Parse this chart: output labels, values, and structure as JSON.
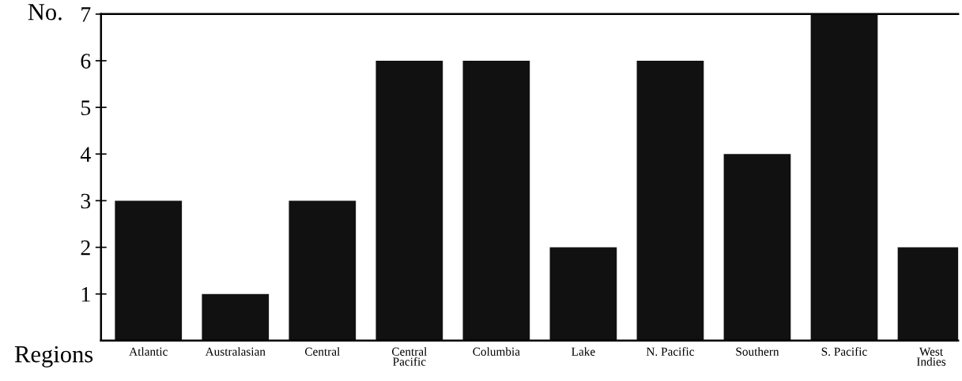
{
  "chart_data": {
    "type": "bar",
    "xlabel": "Regions",
    "ylabel": "No.",
    "categories": [
      "Atlantic",
      "Australasian",
      "Central",
      "Central\nPacific",
      "Columbia",
      "Lake",
      "N. Pacific",
      "Southern",
      "S. Pacific",
      "West\nIndies"
    ],
    "values": [
      3,
      1,
      3,
      6,
      6,
      2,
      6,
      4,
      7,
      2
    ],
    "color": "#111111",
    "ylim": [
      0,
      7
    ],
    "yticks": [
      1,
      2,
      3,
      4,
      5,
      6,
      7
    ],
    "grid": false
  }
}
